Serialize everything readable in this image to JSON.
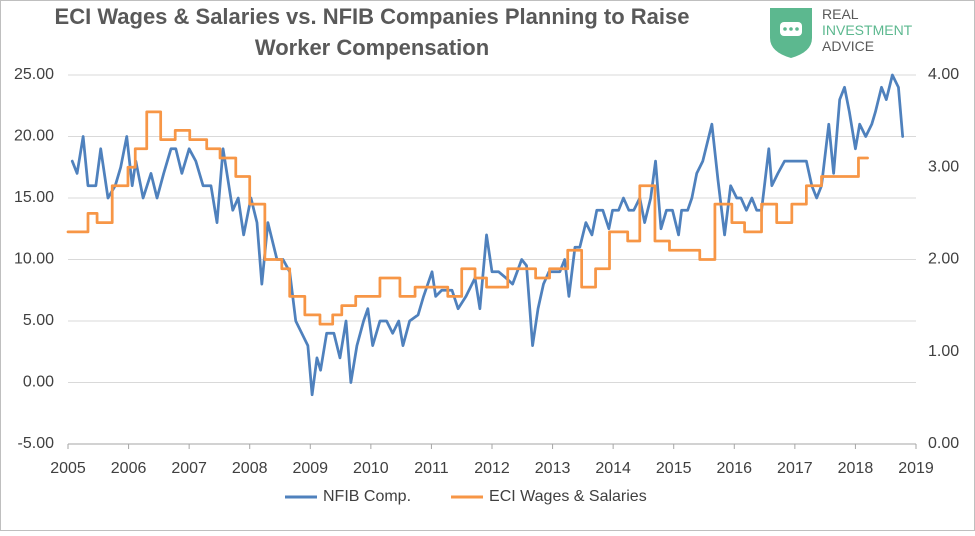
{
  "chart_data": {
    "type": "line",
    "title": [
      "ECI Wages & Salaries vs. NFIB Companies Planning to Raise",
      "Worker Compensation"
    ],
    "logo": [
      "REAL",
      "INVESTMENT",
      "ADVICE"
    ],
    "xlim": [
      2005,
      2019
    ],
    "xticks": [
      2005,
      2006,
      2007,
      2008,
      2009,
      2010,
      2011,
      2012,
      2013,
      2014,
      2015,
      2016,
      2017,
      2018,
      2019
    ],
    "ylim": [
      -5,
      25
    ],
    "yticks": [
      {
        "value": -5,
        "label": "-5.00"
      },
      {
        "value": 0,
        "label": "0.00"
      },
      {
        "value": 5,
        "label": "5.00"
      },
      {
        "value": 10,
        "label": "10.00"
      },
      {
        "value": 15,
        "label": "15.00"
      },
      {
        "value": 20,
        "label": "20.00"
      },
      {
        "value": 25,
        "label": "25.00"
      }
    ],
    "y2lim": [
      0,
      4
    ],
    "y2ticks": [
      {
        "value": 0,
        "label": "0.00"
      },
      {
        "value": 1,
        "label": "1.00"
      },
      {
        "value": 2,
        "label": "2.00"
      },
      {
        "value": 3,
        "label": "3.00"
      },
      {
        "value": 4,
        "label": "4.00"
      }
    ],
    "grid": true,
    "legend": "bottom",
    "series": [
      {
        "name": "NFIB Comp.",
        "color": "#4f81bd",
        "axis": "y",
        "x": [
          2005.07,
          2005.15,
          2005.25,
          2005.33,
          2005.46,
          2005.54,
          2005.66,
          2005.78,
          2005.87,
          2005.97,
          2006.06,
          2006.12,
          2006.24,
          2006.37,
          2006.47,
          2006.58,
          2006.7,
          2006.78,
          2006.88,
          2007.0,
          2007.11,
          2007.23,
          2007.36,
          2007.46,
          2007.56,
          2007.72,
          2007.81,
          2007.9,
          2008.02,
          2008.12,
          2008.2,
          2008.3,
          2008.45,
          2008.55,
          2008.66,
          2008.76,
          2008.86,
          2008.96,
          2009.03,
          2009.11,
          2009.17,
          2009.27,
          2009.39,
          2009.49,
          2009.59,
          2009.67,
          2009.77,
          2009.88,
          2009.95,
          2010.03,
          2010.15,
          2010.26,
          2010.36,
          2010.46,
          2010.53,
          2010.64,
          2010.78,
          2010.87,
          2011.01,
          2011.07,
          2011.17,
          2011.34,
          2011.44,
          2011.57,
          2011.72,
          2011.8,
          2011.91,
          2012.0,
          2012.11,
          2012.23,
          2012.34,
          2012.49,
          2012.57,
          2012.67,
          2012.76,
          2012.85,
          2012.94,
          2013.0,
          2013.12,
          2013.2,
          2013.27,
          2013.37,
          2013.45,
          2013.55,
          2013.65,
          2013.73,
          2013.83,
          2013.93,
          2013.99,
          2014.09,
          2014.17,
          2014.26,
          2014.34,
          2014.44,
          2014.52,
          2014.62,
          2014.7,
          2014.79,
          2014.88,
          2014.98,
          2015.08,
          2015.13,
          2015.23,
          2015.3,
          2015.38,
          2015.48,
          2015.63,
          2015.73,
          2015.84,
          2015.94,
          2016.04,
          2016.11,
          2016.2,
          2016.29,
          2016.37,
          2016.45,
          2016.57,
          2016.62,
          2016.72,
          2016.83,
          2016.93,
          2017.03,
          2017.13,
          2017.19,
          2017.28,
          2017.36,
          2017.44,
          2017.56,
          2017.64,
          2017.74,
          2017.82,
          2017.9,
          2018.0,
          2018.07,
          2018.17,
          2018.27,
          2018.33,
          2018.43,
          2018.51,
          2018.61,
          2018.71,
          2018.78
        ],
        "values": [
          18,
          17,
          20,
          16,
          16,
          19,
          15,
          16,
          17.5,
          20,
          16,
          18,
          15,
          17,
          15,
          17,
          19,
          19,
          17,
          19,
          18,
          16,
          16,
          13,
          19,
          14,
          15,
          12,
          15,
          13,
          8,
          13,
          10,
          10,
          9,
          5,
          4,
          3,
          -1,
          2,
          1,
          4,
          4,
          2,
          5,
          0,
          3,
          5,
          6,
          3,
          5,
          5,
          4,
          5,
          3,
          5,
          5.5,
          7,
          9,
          7,
          7.5,
          7.5,
          6,
          7,
          8.5,
          6,
          12,
          9,
          9,
          8.5,
          8,
          10,
          9.5,
          3,
          6,
          8,
          9,
          9,
          9,
          10,
          7,
          11,
          11,
          13,
          12,
          14,
          14,
          12.5,
          14,
          14,
          15,
          14,
          14,
          15,
          13,
          15,
          18,
          12.5,
          14,
          14,
          12,
          14,
          14,
          15,
          17,
          18,
          21,
          16.5,
          12,
          16,
          15,
          15,
          14,
          15,
          14,
          14,
          19,
          16,
          17,
          18,
          18,
          18,
          18,
          18,
          16,
          15,
          16,
          21,
          17,
          23,
          24,
          22,
          19,
          21,
          20,
          21,
          22,
          24,
          23,
          25,
          24,
          20
        ]
      },
      {
        "name": "ECI Wages & Salaries",
        "color": "#f79646",
        "axis": "y2",
        "step": true,
        "x": [
          2005.0,
          2005.33,
          2005.48,
          2005.73,
          2005.99,
          2006.11,
          2006.3,
          2006.53,
          2006.77,
          2007.01,
          2007.29,
          2007.51,
          2007.77,
          2008.0,
          2008.25,
          2008.53,
          2008.66,
          2008.91,
          2009.16,
          2009.37,
          2009.52,
          2009.75,
          2010.15,
          2010.48,
          2010.73,
          2011.27,
          2011.5,
          2011.72,
          2011.91,
          2012.26,
          2012.72,
          2012.95,
          2013.25,
          2013.48,
          2013.71,
          2013.94,
          2014.24,
          2014.44,
          2014.69,
          2014.93,
          2015.43,
          2015.68,
          2015.96,
          2016.17,
          2016.45,
          2016.7,
          2016.95,
          2017.19,
          2017.44,
          2018.05,
          2018.2
        ],
        "values": [
          2.3,
          2.5,
          2.4,
          2.8,
          3.0,
          3.2,
          3.6,
          3.3,
          3.4,
          3.3,
          3.2,
          3.1,
          2.9,
          2.6,
          2.0,
          1.9,
          1.6,
          1.4,
          1.3,
          1.4,
          1.5,
          1.6,
          1.8,
          1.6,
          1.7,
          1.6,
          1.9,
          1.8,
          1.7,
          1.9,
          1.8,
          1.9,
          2.1,
          1.7,
          1.9,
          2.3,
          2.2,
          2.8,
          2.2,
          2.1,
          2.0,
          2.6,
          2.4,
          2.3,
          2.6,
          2.4,
          2.6,
          2.8,
          2.9,
          3.1,
          3.1
        ]
      }
    ]
  }
}
